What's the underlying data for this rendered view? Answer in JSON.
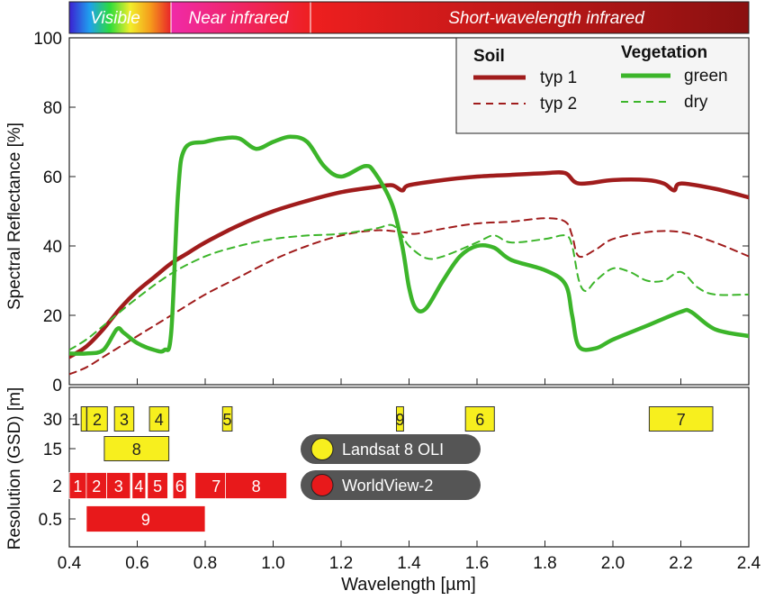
{
  "colors": {
    "soil": "#a01c1c",
    "veg": "#3cb52a",
    "landsat": "#f7ef1e",
    "worldview": "#e8191b",
    "pill": "#555555"
  },
  "regions": [
    {
      "name": "visible",
      "label": "Visible",
      "from": 0.4,
      "to": 0.7
    },
    {
      "name": "near-infrared",
      "label": "Near infrared",
      "from": 0.7,
      "to": 1.1
    },
    {
      "name": "short-wavelength-infrared",
      "label": "Short-wavelength infrared",
      "from": 1.1,
      "to": 2.4
    }
  ],
  "legend": {
    "soil_header": "Soil",
    "veg_header": "Vegetation",
    "soil_typ1": "typ 1",
    "soil_typ2": "typ 2",
    "veg_green": "green",
    "veg_dry": "dry"
  },
  "sensor_legend": {
    "landsat": "Landsat 8 OLI",
    "worldview": "WorldView-2"
  },
  "chart_data": [
    {
      "type": "line",
      "ylabel": "Spectral Reflectance [%]",
      "xlim": [
        0.4,
        2.4
      ],
      "ylim": [
        0,
        100
      ],
      "yticks": [
        0,
        20,
        40,
        60,
        80,
        100
      ],
      "grid": false,
      "legend_position": "top-right",
      "series": [
        {
          "name": "typ 1",
          "group": "Soil",
          "style": "solid",
          "x": [
            0.4,
            0.45,
            0.5,
            0.55,
            0.6,
            0.65,
            0.7,
            0.75,
            0.8,
            0.9,
            1.0,
            1.1,
            1.2,
            1.3,
            1.35,
            1.38,
            1.4,
            1.5,
            1.6,
            1.7,
            1.8,
            1.86,
            1.9,
            2.0,
            2.1,
            2.15,
            2.18,
            2.2,
            2.3,
            2.4
          ],
          "y": [
            8,
            11,
            16,
            22,
            27,
            31,
            35,
            38,
            41,
            46,
            50,
            53,
            55.5,
            57,
            57.5,
            56,
            57.5,
            59,
            60,
            60.5,
            61,
            61,
            58,
            59,
            59,
            58,
            56,
            58,
            56.5,
            54
          ]
        },
        {
          "name": "typ 2",
          "group": "Soil",
          "style": "dashed",
          "x": [
            0.4,
            0.45,
            0.5,
            0.55,
            0.6,
            0.7,
            0.8,
            0.9,
            1.0,
            1.1,
            1.2,
            1.3,
            1.38,
            1.42,
            1.5,
            1.6,
            1.7,
            1.8,
            1.86,
            1.88,
            1.9,
            1.95,
            2.0,
            2.1,
            2.2,
            2.3,
            2.4
          ],
          "y": [
            3,
            5,
            8,
            11,
            14,
            20,
            26,
            31,
            36,
            40,
            43,
            44.5,
            44,
            43.5,
            45,
            46.5,
            47,
            48,
            47,
            43,
            37,
            39,
            42,
            44,
            44,
            41,
            37
          ]
        },
        {
          "name": "green",
          "group": "Vegetation",
          "style": "solid",
          "x": [
            0.4,
            0.45,
            0.5,
            0.54,
            0.56,
            0.6,
            0.65,
            0.68,
            0.7,
            0.72,
            0.74,
            0.8,
            0.85,
            0.9,
            0.95,
            1.0,
            1.05,
            1.1,
            1.15,
            1.2,
            1.27,
            1.3,
            1.35,
            1.38,
            1.4,
            1.42,
            1.45,
            1.5,
            1.55,
            1.6,
            1.65,
            1.7,
            1.8,
            1.86,
            1.88,
            1.9,
            1.95,
            2.0,
            2.1,
            2.2,
            2.23,
            2.3,
            2.4
          ],
          "y": [
            9,
            9,
            10,
            16,
            15,
            12,
            10,
            10,
            15,
            55,
            68,
            70,
            71,
            71,
            68,
            70,
            71.5,
            70,
            63,
            60,
            63,
            61,
            52,
            40,
            28,
            22,
            22,
            30,
            37,
            40,
            39.5,
            36,
            33,
            29,
            20,
            11,
            10.5,
            13,
            17,
            21,
            21,
            16,
            14
          ]
        },
        {
          "name": "dry",
          "group": "Vegetation",
          "style": "dashed",
          "x": [
            0.4,
            0.45,
            0.5,
            0.6,
            0.7,
            0.8,
            0.9,
            1.0,
            1.1,
            1.2,
            1.3,
            1.35,
            1.38,
            1.4,
            1.45,
            1.5,
            1.6,
            1.65,
            1.7,
            1.8,
            1.86,
            1.88,
            1.9,
            1.92,
            1.95,
            2.0,
            2.05,
            2.1,
            2.15,
            2.2,
            2.25,
            2.3,
            2.4
          ],
          "y": [
            10,
            13,
            17,
            25,
            32,
            37,
            40,
            42,
            43,
            43.5,
            45,
            46,
            43,
            40,
            36.5,
            37,
            41,
            43,
            41,
            42,
            43,
            40,
            30,
            27,
            30,
            33.5,
            32.5,
            30,
            30,
            32.5,
            28,
            26,
            26
          ]
        }
      ]
    },
    {
      "type": "bar",
      "title": "",
      "xlabel": "Wavelength [µm]",
      "ylabel": "Resolution (GSD) [m]",
      "xlim": [
        0.4,
        2.4
      ],
      "xticks": [
        "0.4",
        "0.6",
        "0.8",
        "1.0",
        "1.2",
        "1.4",
        "1.6",
        "1.8",
        "2.0",
        "2.2",
        "2.4"
      ],
      "categories": [
        "30",
        "15",
        "2",
        "0.5"
      ],
      "series": [
        {
          "name": "Landsat 8 OLI",
          "bands": [
            {
              "label": "1",
              "gsd": "30",
              "from": 0.435,
              "to": 0.451
            },
            {
              "label": "2",
              "gsd": "30",
              "from": 0.452,
              "to": 0.512
            },
            {
              "label": "3",
              "gsd": "30",
              "from": 0.533,
              "to": 0.59
            },
            {
              "label": "4",
              "gsd": "30",
              "from": 0.636,
              "to": 0.693
            },
            {
              "label": "5",
              "gsd": "30",
              "from": 0.851,
              "to": 0.879
            },
            {
              "label": "9",
              "gsd": "30",
              "from": 1.363,
              "to": 1.384
            },
            {
              "label": "6",
              "gsd": "30",
              "from": 1.566,
              "to": 1.651
            },
            {
              "label": "7",
              "gsd": "30",
              "from": 2.107,
              "to": 2.294
            },
            {
              "label": "8",
              "gsd": "15",
              "from": 0.503,
              "to": 0.693
            }
          ]
        },
        {
          "name": "WorldView-2",
          "bands": [
            {
              "label": "1",
              "gsd": "2",
              "from": 0.4,
              "to": 0.45
            },
            {
              "label": "2",
              "gsd": "2",
              "from": 0.45,
              "to": 0.51
            },
            {
              "label": "3",
              "gsd": "2",
              "from": 0.51,
              "to": 0.58
            },
            {
              "label": "4",
              "gsd": "2",
              "from": 0.585,
              "to": 0.625
            },
            {
              "label": "5",
              "gsd": "2",
              "from": 0.63,
              "to": 0.69
            },
            {
              "label": "6",
              "gsd": "2",
              "from": 0.705,
              "to": 0.745
            },
            {
              "label": "7",
              "gsd": "2",
              "from": 0.77,
              "to": 0.895
            },
            {
              "label": "8",
              "gsd": "2",
              "from": 0.86,
              "to": 1.04
            },
            {
              "label": "9",
              "gsd": "0.5",
              "from": 0.45,
              "to": 0.8
            }
          ]
        }
      ]
    }
  ]
}
